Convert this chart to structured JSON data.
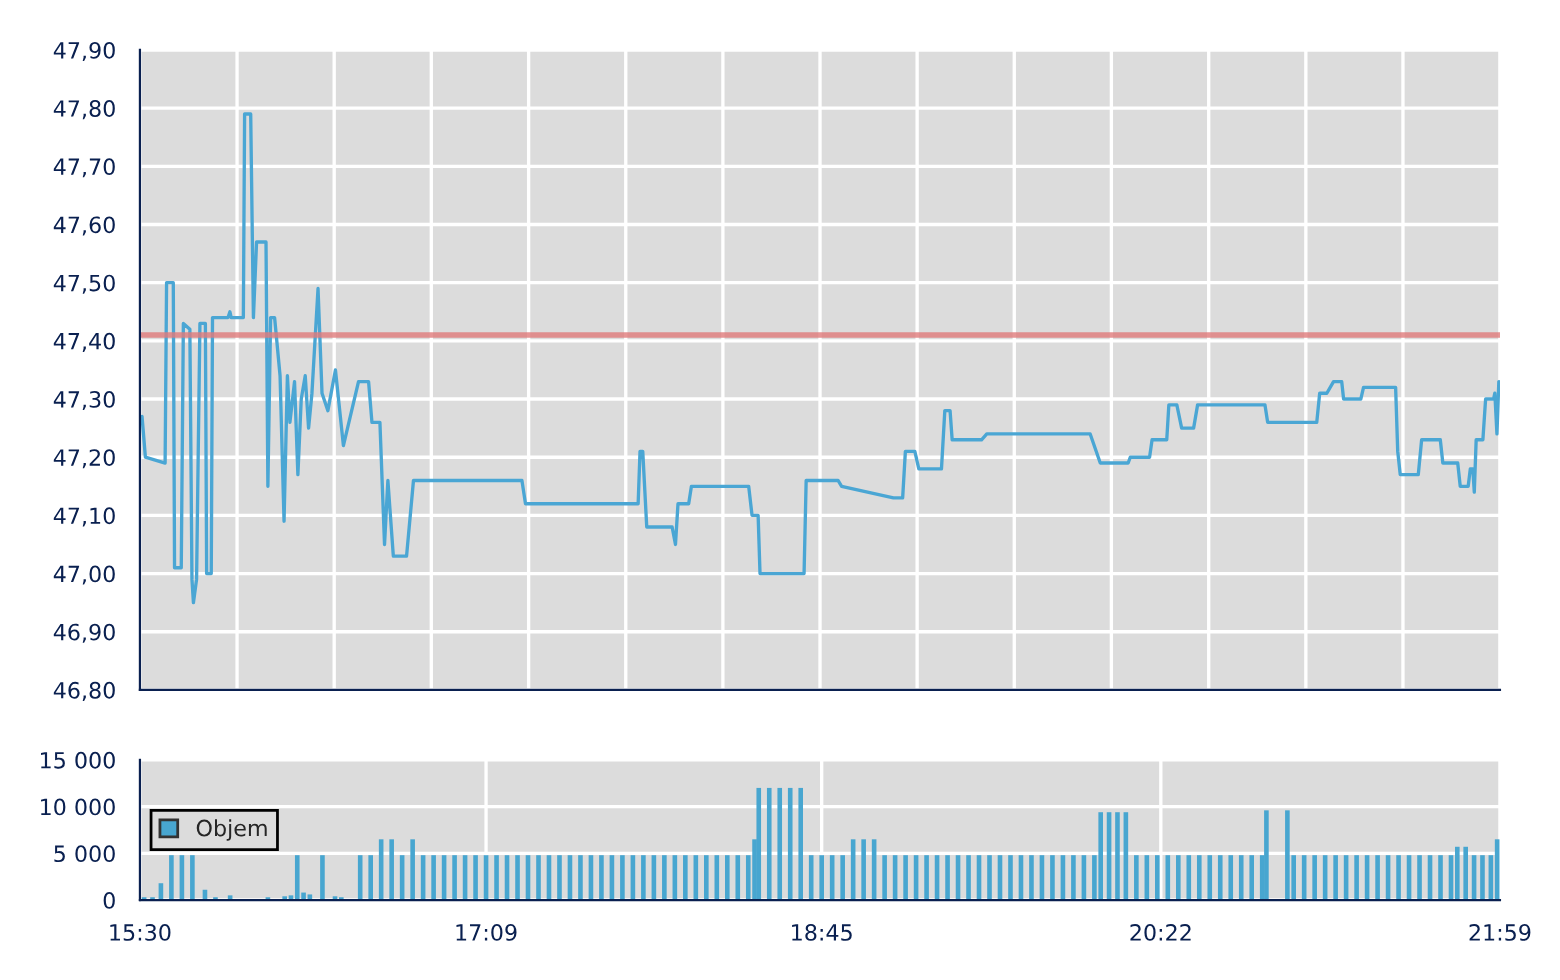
{
  "chart_data": [
    {
      "type": "line",
      "color": "#4aa6d4",
      "grid": true,
      "tick_labels": "y",
      "x": [
        15.51,
        15.526,
        15.62,
        15.627,
        15.659,
        15.665,
        15.697,
        15.707,
        15.738,
        15.748,
        15.755,
        15.77,
        15.786,
        15.812,
        15.818,
        15.84,
        15.846,
        15.92,
        15.929,
        15.935,
        15.993,
        15.999,
        16.028,
        16.041,
        16.056,
        16.101,
        16.11,
        16.123,
        16.142,
        16.168,
        16.187,
        16.203,
        16.215,
        16.237,
        16.253,
        16.269,
        16.288,
        16.304,
        16.32,
        16.349,
        16.368,
        16.396,
        16.432,
        16.47,
        16.542,
        16.59,
        16.606,
        16.644,
        16.666,
        16.682,
        16.708,
        16.771,
        16.804,
        17.321,
        17.338,
        17.875,
        17.884,
        17.897,
        17.916,
        18.037,
        18.053,
        18.065,
        18.116,
        18.129,
        18.402,
        18.418,
        18.447,
        18.456,
        18.666,
        18.676,
        18.828,
        18.845,
        19.092,
        19.136,
        19.149,
        19.194,
        19.213,
        19.321,
        19.337,
        19.362,
        19.372,
        19.512,
        19.537,
        20.03,
        20.078,
        20.211,
        20.221,
        20.313,
        20.325,
        20.395,
        20.405,
        20.443,
        20.466,
        20.523,
        20.542,
        20.863,
        20.876,
        21.11,
        21.124,
        21.158,
        21.19,
        21.229,
        21.238,
        21.32,
        21.333,
        21.486,
        21.496,
        21.508,
        21.594,
        21.61,
        21.699,
        21.711,
        21.782,
        21.794,
        21.832,
        21.842,
        21.854,
        21.861,
        21.87,
        21.902,
        21.915,
        21.953,
        21.959,
        21.969,
        21.978
      ],
      "values": [
        47.27,
        47.2,
        47.19,
        47.5,
        47.5,
        47.01,
        47.01,
        47.43,
        47.42,
        46.99,
        46.95,
        46.99,
        47.43,
        47.43,
        47.0,
        47.0,
        47.44,
        47.44,
        47.45,
        47.44,
        47.44,
        47.79,
        47.79,
        47.44,
        47.57,
        47.57,
        47.15,
        47.44,
        47.44,
        47.34,
        47.09,
        47.34,
        47.26,
        47.33,
        47.17,
        47.3,
        47.34,
        47.25,
        47.31,
        47.49,
        47.31,
        47.28,
        47.35,
        47.22,
        47.33,
        47.33,
        47.26,
        47.26,
        47.05,
        47.16,
        47.03,
        47.03,
        47.16,
        47.16,
        47.12,
        47.12,
        47.21,
        47.21,
        47.08,
        47.08,
        47.05,
        47.12,
        47.12,
        47.15,
        47.15,
        47.1,
        47.1,
        47.0,
        47.0,
        47.16,
        47.16,
        47.15,
        47.13,
        47.13,
        47.21,
        47.21,
        47.18,
        47.18,
        47.28,
        47.28,
        47.23,
        47.23,
        47.24,
        47.24,
        47.19,
        47.19,
        47.2,
        47.2,
        47.23,
        47.23,
        47.29,
        47.29,
        47.25,
        47.25,
        47.29,
        47.29,
        47.26,
        47.26,
        47.31,
        47.31,
        47.33,
        47.33,
        47.3,
        47.3,
        47.32,
        47.32,
        47.21,
        47.17,
        47.17,
        47.23,
        47.23,
        47.19,
        47.19,
        47.15,
        47.15,
        47.18,
        47.18,
        47.14,
        47.23,
        47.23,
        47.3,
        47.3,
        47.31,
        47.24,
        47.33
      ],
      "xlim": [
        15.5,
        21.9833
      ],
      "xticks": [
        {
          "value": 15.5,
          "label": null
        },
        {
          "value": 15.963,
          "label": null
        },
        {
          "value": 16.426,
          "label": null
        },
        {
          "value": 16.889,
          "label": null
        },
        {
          "value": 17.353,
          "label": null
        },
        {
          "value": 17.816,
          "label": null
        },
        {
          "value": 18.279,
          "label": null
        },
        {
          "value": 18.742,
          "label": null
        },
        {
          "value": 19.205,
          "label": null
        },
        {
          "value": 19.668,
          "label": null
        },
        {
          "value": 20.131,
          "label": null
        },
        {
          "value": 20.595,
          "label": null
        },
        {
          "value": 21.058,
          "label": null
        },
        {
          "value": 21.521,
          "label": null
        },
        {
          "value": 21.983,
          "label": null
        }
      ],
      "ylim": [
        46.8,
        47.9
      ],
      "yticks": [
        {
          "value": 46.8,
          "label": "46,80"
        },
        {
          "value": 46.9,
          "label": "46,90"
        },
        {
          "value": 47.0,
          "label": "47,00"
        },
        {
          "value": 47.1,
          "label": "47,10"
        },
        {
          "value": 47.2,
          "label": "47,20"
        },
        {
          "value": 47.3,
          "label": "47,30"
        },
        {
          "value": 47.4,
          "label": "47,40"
        },
        {
          "value": 47.5,
          "label": "47,50"
        },
        {
          "value": 47.6,
          "label": "47,60"
        },
        {
          "value": 47.7,
          "label": "47,70"
        },
        {
          "value": 47.8,
          "label": "47,80"
        },
        {
          "value": 47.9,
          "label": "47,90"
        }
      ],
      "ref_lines": [
        {
          "axis": "y",
          "value": 47.41,
          "color": "#e07a7a"
        }
      ]
    },
    {
      "type": "bar",
      "grid": true,
      "legend": "left",
      "x": [
        15.52,
        15.56,
        15.6,
        15.65,
        15.7,
        15.75,
        15.81,
        15.86,
        15.93,
        16.11,
        16.19,
        16.22,
        16.25,
        16.28,
        16.31,
        16.37,
        16.43,
        16.46,
        16.55,
        16.6,
        16.65,
        16.7,
        16.75,
        16.8,
        16.85,
        16.9,
        16.95,
        17.0,
        17.05,
        17.1,
        17.15,
        17.2,
        17.25,
        17.3,
        17.35,
        17.4,
        17.45,
        17.5,
        17.55,
        17.6,
        17.65,
        17.7,
        17.75,
        17.8,
        17.85,
        17.9,
        17.95,
        18.0,
        18.05,
        18.1,
        18.15,
        18.2,
        18.25,
        18.3,
        18.35,
        18.4,
        18.43,
        18.45,
        18.5,
        18.55,
        18.6,
        18.65,
        18.7,
        18.75,
        18.8,
        18.85,
        18.9,
        18.95,
        19.0,
        19.05,
        19.1,
        19.15,
        19.2,
        19.25,
        19.3,
        19.35,
        19.4,
        19.45,
        19.5,
        19.55,
        19.6,
        19.65,
        19.7,
        19.75,
        19.8,
        19.85,
        19.9,
        19.95,
        20.0,
        20.05,
        20.08,
        20.12,
        20.16,
        20.2,
        20.25,
        20.3,
        20.35,
        20.4,
        20.45,
        20.5,
        20.55,
        20.6,
        20.65,
        20.7,
        20.75,
        20.8,
        20.85,
        20.87,
        20.97,
        21.0,
        21.05,
        21.1,
        21.15,
        21.2,
        21.25,
        21.3,
        21.35,
        21.4,
        21.45,
        21.5,
        21.55,
        21.6,
        21.65,
        21.7,
        21.75,
        21.78,
        21.82,
        21.86,
        21.9,
        21.94,
        21.97
      ],
      "series": [
        {
          "name": "Objem",
          "color": "#48a6d0",
          "values": [
            300,
            300,
            1800,
            4800,
            4800,
            4800,
            1100,
            300,
            500,
            300,
            400,
            500,
            4800,
            800,
            600,
            4800,
            400,
            300,
            4800,
            4800,
            6500,
            6500,
            4800,
            6500,
            4800,
            4800,
            4800,
            4800,
            4800,
            4800,
            4800,
            4800,
            4800,
            4800,
            4800,
            4800,
            4800,
            4800,
            4800,
            4800,
            4800,
            4800,
            4800,
            4800,
            4800,
            4800,
            4800,
            4800,
            4800,
            4800,
            4800,
            4800,
            4800,
            4800,
            4800,
            4800,
            6500,
            12000,
            12000,
            12000,
            12000,
            12000,
            4800,
            4800,
            4800,
            4800,
            6500,
            6500,
            6500,
            4800,
            4800,
            4800,
            4800,
            4800,
            4800,
            4800,
            4800,
            4800,
            4800,
            4800,
            4800,
            4800,
            4800,
            4800,
            4800,
            4800,
            4800,
            4800,
            4800,
            4800,
            9400,
            9400,
            9400,
            9400,
            4800,
            4800,
            4800,
            4800,
            4800,
            4800,
            4800,
            4800,
            4800,
            4800,
            4800,
            4800,
            4800,
            9600,
            9600,
            4800,
            4800,
            4800,
            4800,
            4800,
            4800,
            4800,
            4800,
            4800,
            4800,
            4800,
            4800,
            4800,
            4800,
            4800,
            4800,
            5700,
            5700,
            4800,
            4800,
            4800,
            6500
          ]
        }
      ],
      "xlim": [
        15.5,
        21.9833
      ],
      "xticks": [
        {
          "value": 15.5,
          "label": "15:30"
        },
        {
          "value": 17.15,
          "label": "17:09"
        },
        {
          "value": 18.75,
          "label": "18:45"
        },
        {
          "value": 20.3667,
          "label": "20:22"
        },
        {
          "value": 21.9833,
          "label": "21:59"
        }
      ],
      "ylim": [
        0,
        15000
      ],
      "yticks": [
        {
          "value": 0,
          "label": "0"
        },
        {
          "value": 5000,
          "label": "5 000"
        },
        {
          "value": 10000,
          "label": "10 000"
        },
        {
          "value": 15000,
          "label": "15 000"
        }
      ]
    }
  ]
}
